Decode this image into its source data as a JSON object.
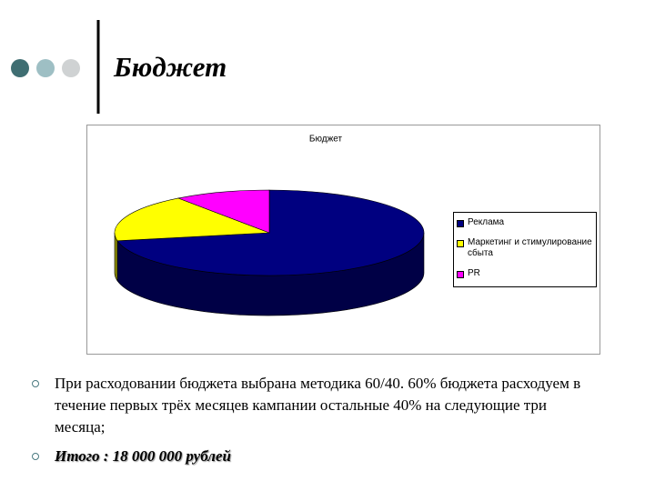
{
  "slide": {
    "title": "Бюджет",
    "bullets": [
      "При расходовании бюджета выбрана методика 60/40. 60% бюджета расходуем в течение первых трёх месяцев кампании остальные 40% на следующие три месяца;",
      "Итого : 18 000 000 рублей"
    ]
  },
  "chart_data": {
    "type": "pie",
    "title": "Бюджет",
    "categories": [
      "Реклама",
      "Маркетинг и стимулирование сбыта",
      "PR"
    ],
    "values": [
      72,
      18,
      10
    ],
    "colors": [
      "#000080",
      "#ffff00",
      "#ff00ff"
    ],
    "legend": "right"
  }
}
